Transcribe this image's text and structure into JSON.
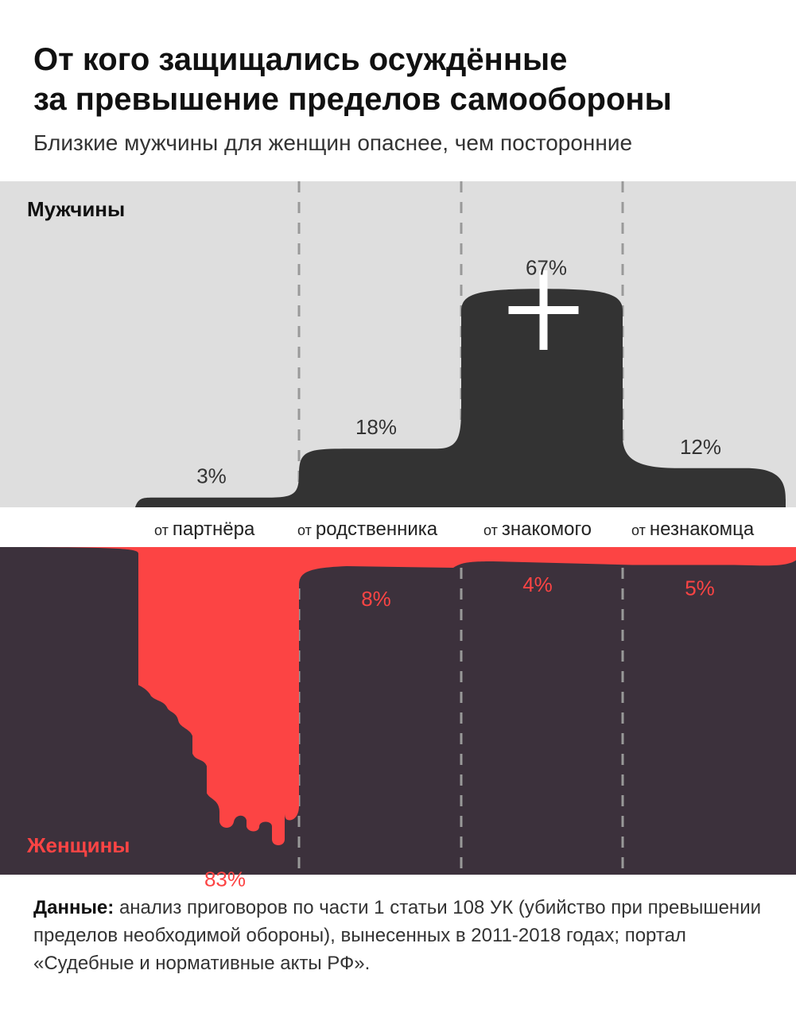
{
  "title_lines": [
    "От кого защищались осуждённые",
    "за превышение пределов самообороны"
  ],
  "subtitle": "Близкие мужчины для женщин опаснее, чем посторонние",
  "source": {
    "label": "Данные:",
    "text": "анализ приговоров по части 1 статьи 108 УК (убийство при превышении пределов необходимой обороны), вынесенных в 2011-2018 годах; портал «Судебные и нормативные акты РФ»."
  },
  "icon": "cross-icon",
  "colors": {
    "men_bg": "#dedede",
    "men_bar": "#333333",
    "women_bg": "#3c313c",
    "women_bar": "#fc4444",
    "divider": "#999999",
    "men_label": "#111111",
    "women_label": "#fc4444"
  },
  "chart_data": {
    "type": "bar",
    "categories": [
      "от партнёра",
      "от родственника",
      "от знакомого",
      "от незнакомца"
    ],
    "series": [
      {
        "name": "Мужчины",
        "values": [
          3,
          18,
          67,
          12
        ],
        "labels": [
          "3%",
          "18%",
          "67%",
          "12%"
        ]
      },
      {
        "name": "Женщины",
        "values": [
          83,
          8,
          4,
          5
        ],
        "labels": [
          "83%",
          "8%",
          "4%",
          "5%"
        ]
      }
    ],
    "unit": "%"
  }
}
